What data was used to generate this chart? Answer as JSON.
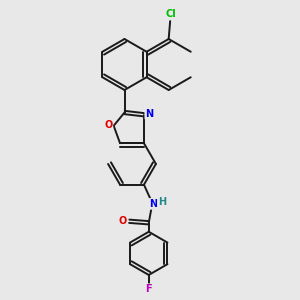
{
  "background_color": "#e8e8e8",
  "bond_color": "#1a1a1a",
  "atom_colors": {
    "Cl": "#00bb00",
    "O": "#dd0000",
    "N": "#0000ee",
    "H": "#228888",
    "F": "#bb00bb"
  },
  "lw": 1.4,
  "dbo": 0.055,
  "fs": 6.5
}
